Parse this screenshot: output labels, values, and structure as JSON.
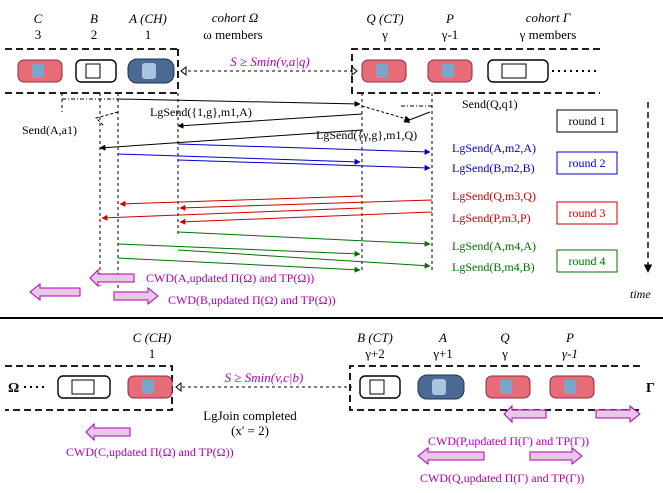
{
  "top": {
    "cols": [
      {
        "name": "C",
        "num": "3"
      },
      {
        "name": "B",
        "num": "2"
      },
      {
        "name": "A (CH)",
        "num": "1"
      },
      {
        "name": "Q (CT)",
        "num": "γ"
      },
      {
        "name": "P",
        "num": "γ-1"
      }
    ],
    "cohort_omega": {
      "title": "cohort Ω",
      "sub": "ω members"
    },
    "cohort_gamma": {
      "title": "cohort Γ",
      "sub": "γ members"
    },
    "condition": "S ≥ Smin(v,a|q)",
    "send_a": "Send(A,a1)",
    "send_q": "Send(Q,q1)",
    "lg_send_1a": "LgSend({1,g},m1,A)",
    "lg_send_1q": "LgSend({γ,g},m1,Q)",
    "round2": [
      "LgSend(A,m2,A)",
      "LgSend(B,m2,B)"
    ],
    "round3": [
      "LgSend(Q,m3,Q)",
      "LgSend(P,m3,P)"
    ],
    "round4": [
      "LgSend(A,m4,A)",
      "LgSend(B,m4,B)"
    ],
    "rounds": [
      "round 1",
      "round 2",
      "round 3",
      "round 4"
    ],
    "cwd_a": "CWD(A,updated Π(Ω) and TP(Ω))",
    "cwd_b": "CWD(B,updated Π(Ω) and TP(Ω))",
    "time": "time"
  },
  "bottom": {
    "col_c": {
      "name": "C (CH)",
      "num": "1"
    },
    "col_b": {
      "name": "B (CT)",
      "num": "γ+2"
    },
    "col_a": {
      "name": "A",
      "num": "γ+1"
    },
    "col_q": {
      "name": "Q",
      "num": "γ"
    },
    "col_p": {
      "name": "P",
      "num": "γ-1"
    },
    "omega": "Ω",
    "gamma": "Γ",
    "condition": "S ≥ Smin(v,c|b)",
    "join": "LgJoin completed",
    "join_x": "(x' = 2)",
    "cwd_c": "CWD(C,updated Π(Ω) and TP(Ω))",
    "cwd_p": "CWD(P,updated Π(Γ) and TP(Γ))",
    "cwd_q": "CWD(Q,updated Π(Γ) and TP(Γ))"
  },
  "colors": {
    "magenta": "#b000b0",
    "blue": "#0000cc",
    "red": "#cc0000",
    "green": "#007000"
  }
}
